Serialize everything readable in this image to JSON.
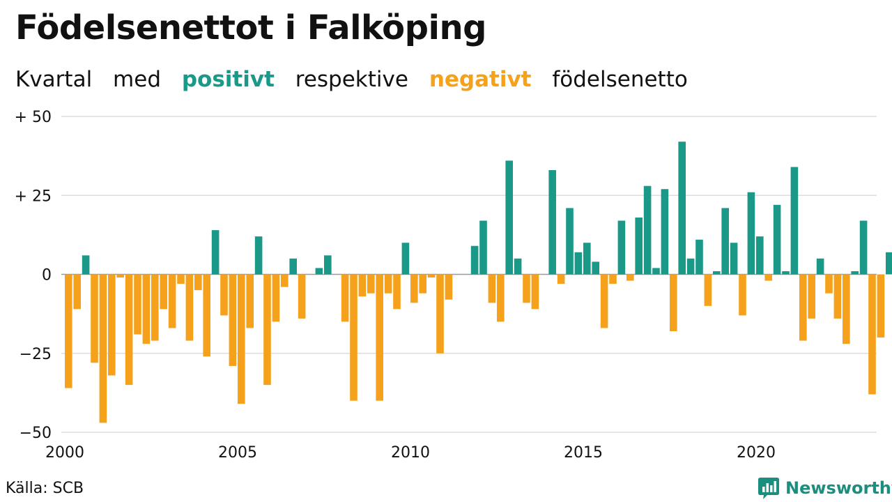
{
  "header": {
    "title": "Födelsenettot i Falköping",
    "subtitle": {
      "prefix": "Kvartal",
      "with": "med",
      "positive": "positivt",
      "middle": "respektive",
      "negative": "negativt",
      "suffix": "födelsenetto"
    }
  },
  "footer": {
    "source": "Källa: SCB",
    "brand": "Newsworthy"
  },
  "colors": {
    "positive": "#1a9988",
    "negative": "#f5a11c",
    "grid": "#dddddd",
    "brand": "#1a8e7f"
  },
  "chart_data": {
    "type": "bar",
    "title": "Födelsenettot i Falköping",
    "x_start": "2000Q1",
    "ylim": [
      -50,
      50
    ],
    "yticks": [
      {
        "value": 50,
        "label": "+ 50"
      },
      {
        "value": 25,
        "label": "+ 25"
      },
      {
        "value": 0,
        "label": "0"
      },
      {
        "value": -25,
        "label": "−25"
      },
      {
        "value": -50,
        "label": "−50"
      }
    ],
    "xticks": [
      "2000",
      "2005",
      "2010",
      "2015",
      "2020"
    ],
    "grid": true,
    "legend": "none",
    "values": [
      -36,
      -11,
      6,
      -28,
      -47,
      -32,
      -1,
      -35,
      -19,
      -22,
      -21,
      -11,
      -17,
      -3,
      -21,
      -5,
      -26,
      14,
      -13,
      -29,
      -41,
      -17,
      12,
      -35,
      -15,
      -4,
      5,
      -14,
      0,
      2,
      6,
      0,
      -15,
      -40,
      -7,
      -6,
      -40,
      -6,
      -11,
      10,
      -9,
      -6,
      -1,
      -25,
      -8,
      0,
      0,
      9,
      17,
      -9,
      -15,
      36,
      5,
      -9,
      -11,
      0,
      33,
      -3,
      21,
      7,
      10,
      4,
      -17,
      -3,
      17,
      -2,
      18,
      28,
      2,
      27,
      -18,
      42,
      5,
      11,
      -10,
      1,
      21,
      10,
      -13,
      26,
      12,
      -2,
      22,
      1,
      34,
      -21,
      -14,
      5,
      -6,
      -14,
      -22,
      1,
      17,
      -38,
      -20,
      7
    ]
  }
}
